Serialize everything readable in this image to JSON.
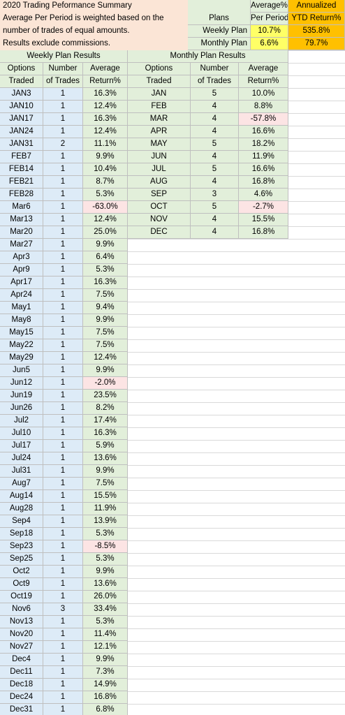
{
  "summary": {
    "line1": "2020 Trading Peformance Summary",
    "line2": "Average Per Period is weighted based on the",
    "line3": "number of trades of equal amounts.",
    "line4": "Results exclude commissions."
  },
  "plans_table": {
    "header_plans": "Plans",
    "header_avg_line1": "Average%",
    "header_avg_line2": "Per Period",
    "header_ann_line1": "Annualized",
    "header_ann_line2": "YTD Return%",
    "rows": [
      {
        "plan": "Weekly Plan",
        "avg": "10.7%",
        "annualized": "535.8%"
      },
      {
        "plan": "Monthly Plan",
        "avg": "6.6%",
        "annualized": "79.7%"
      }
    ]
  },
  "weekly": {
    "title": "Weekly Plan Results",
    "col1_line1": "Options",
    "col1_line2": "Traded",
    "col2_line1": "Number",
    "col2_line2": "of Trades",
    "col3_line1": "Average",
    "col3_line2": "Return%",
    "rows": [
      [
        "JAN3",
        "1",
        "16.3%"
      ],
      [
        "JAN10",
        "1",
        "12.4%"
      ],
      [
        "JAN17",
        "1",
        "16.3%"
      ],
      [
        "JAN24",
        "1",
        "12.4%"
      ],
      [
        "JAN31",
        "2",
        "11.1%"
      ],
      [
        "FEB7",
        "1",
        "9.9%"
      ],
      [
        "FEB14",
        "1",
        "10.4%"
      ],
      [
        "FEB21",
        "1",
        "8.7%"
      ],
      [
        "FEB28",
        "1",
        "5.3%"
      ],
      [
        "Mar6",
        "1",
        "-63.0%"
      ],
      [
        "Mar13",
        "1",
        "12.4%"
      ],
      [
        "Mar20",
        "1",
        "25.0%"
      ],
      [
        "Mar27",
        "1",
        "9.9%"
      ],
      [
        "Apr3",
        "1",
        "6.4%"
      ],
      [
        "Apr9",
        "1",
        "5.3%"
      ],
      [
        "Apr17",
        "1",
        "16.3%"
      ],
      [
        "Apr24",
        "1",
        "7.5%"
      ],
      [
        "May1",
        "1",
        "9.4%"
      ],
      [
        "May8",
        "1",
        "9.9%"
      ],
      [
        "May15",
        "1",
        "7.5%"
      ],
      [
        "May22",
        "1",
        "7.5%"
      ],
      [
        "May29",
        "1",
        "12.4%"
      ],
      [
        "Jun5",
        "1",
        "9.9%"
      ],
      [
        "Jun12",
        "1",
        "-2.0%"
      ],
      [
        "Jun19",
        "1",
        "23.5%"
      ],
      [
        "Jun26",
        "1",
        "8.2%"
      ],
      [
        "Jul2",
        "1",
        "17.4%"
      ],
      [
        "Jul10",
        "1",
        "16.3%"
      ],
      [
        "Jul17",
        "1",
        "5.9%"
      ],
      [
        "Jul24",
        "1",
        "13.6%"
      ],
      [
        "Jul31",
        "1",
        "9.9%"
      ],
      [
        "Aug7",
        "1",
        "7.5%"
      ],
      [
        "Aug14",
        "1",
        "15.5%"
      ],
      [
        "Aug28",
        "1",
        "11.9%"
      ],
      [
        "Sep4",
        "1",
        "13.9%"
      ],
      [
        "Sep18",
        "1",
        "5.3%"
      ],
      [
        "Sep23",
        "1",
        "-8.5%"
      ],
      [
        "Sep25",
        "1",
        "5.3%"
      ],
      [
        "Oct2",
        "1",
        "9.9%"
      ],
      [
        "Oct9",
        "1",
        "13.6%"
      ],
      [
        "Oct19",
        "1",
        "26.0%"
      ],
      [
        "Nov6",
        "3",
        "33.4%"
      ],
      [
        "Nov13",
        "1",
        "5.3%"
      ],
      [
        "Nov20",
        "1",
        "11.4%"
      ],
      [
        "Nov27",
        "1",
        "12.1%"
      ],
      [
        "Dec4",
        "1",
        "9.9%"
      ],
      [
        "Dec11",
        "1",
        "7.3%"
      ],
      [
        "Dec18",
        "1",
        "14.9%"
      ],
      [
        "Dec24",
        "1",
        "16.8%"
      ],
      [
        "Dec31",
        "1",
        "6.8%"
      ]
    ]
  },
  "monthly": {
    "title": "Monthly Plan Results",
    "col1_line1": "Options",
    "col1_line2": "Traded",
    "col2_line1": "Number",
    "col2_line2": "of Trades",
    "col3_line1": "Average",
    "col3_line2": "Return%",
    "rows": [
      [
        "JAN",
        "5",
        "10.0%"
      ],
      [
        "FEB",
        "4",
        "8.8%"
      ],
      [
        "MAR",
        "4",
        "-57.8%"
      ],
      [
        "APR",
        "4",
        "16.6%"
      ],
      [
        "MAY",
        "5",
        "18.2%"
      ],
      [
        "JUN",
        "4",
        "11.9%"
      ],
      [
        "JUL",
        "5",
        "16.6%"
      ],
      [
        "AUG",
        "4",
        "16.8%"
      ],
      [
        "SEP",
        "3",
        "4.6%"
      ],
      [
        "OCT",
        "5",
        "-2.7%"
      ],
      [
        "NOV",
        "4",
        "15.5%"
      ],
      [
        "DEC",
        "4",
        "16.8%"
      ]
    ]
  },
  "colors": {
    "options_col": "#ddebf7",
    "return_col": "#e2efda",
    "negative": "#fce4e4",
    "summary_bg": "#fbe5d6",
    "annualized": "#ffc000",
    "plan_avg": "#ffff66"
  }
}
